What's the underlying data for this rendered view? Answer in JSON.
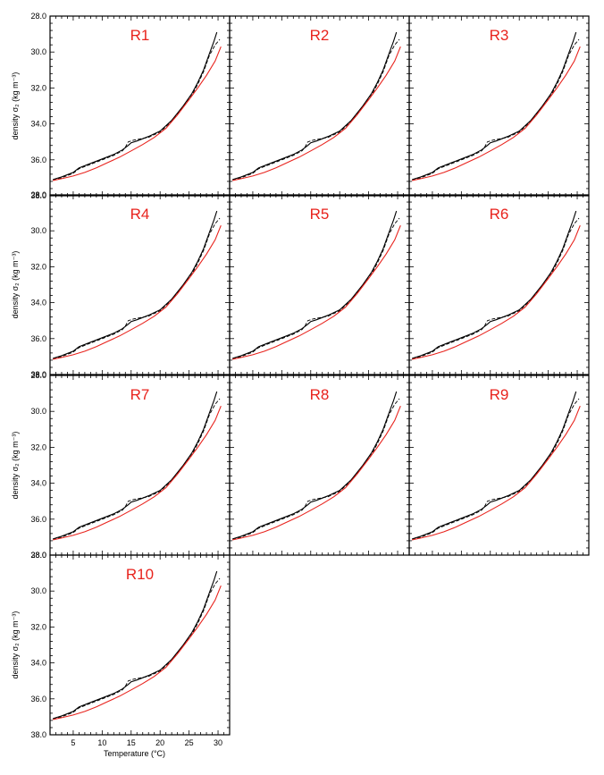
{
  "chart_data": {
    "type": "line",
    "layout": "small-multiples",
    "xlabel": "Temperature (°C)",
    "ylabel": "density σ₂ (kg m⁻³)",
    "xlim": [
      1,
      32
    ],
    "ylim": [
      28.0,
      38.0
    ],
    "y_inverted": true,
    "xticks": [
      "5",
      "10",
      "15",
      "20",
      "25",
      "30"
    ],
    "yticks": [
      "28.0",
      "30.0",
      "32.0",
      "34.0",
      "36.0",
      "38.0"
    ],
    "grid": false,
    "legend": "none",
    "colors": {
      "observed": "#000000",
      "model": "#e8231d",
      "title": "#e8231d"
    },
    "series": [
      {
        "style": "black-solid",
        "x": [
          1.5,
          3,
          5,
          6,
          8,
          10,
          12,
          13.5,
          14.5,
          15,
          16,
          18,
          20,
          22,
          24,
          25.5,
          26.5,
          27.5,
          28.5,
          29.3,
          29.8
        ],
        "y": [
          37.1,
          36.95,
          36.7,
          36.45,
          36.2,
          35.95,
          35.7,
          35.45,
          35.2,
          35.05,
          34.95,
          34.7,
          34.4,
          33.8,
          33.0,
          32.3,
          31.7,
          31.0,
          30.1,
          29.4,
          28.9
        ]
      },
      {
        "style": "black-dashed",
        "x": [
          1.5,
          3,
          5,
          6,
          8,
          10,
          12,
          13.5,
          14,
          14.5,
          15.5,
          18,
          20,
          22,
          24,
          25.5,
          26.5,
          27.5,
          28.5,
          29.5,
          30.3
        ],
        "y": [
          37.15,
          37.0,
          36.75,
          36.5,
          36.25,
          36.0,
          35.75,
          35.5,
          35.3,
          35.0,
          34.9,
          34.75,
          34.45,
          33.85,
          33.05,
          32.4,
          31.8,
          31.1,
          30.2,
          29.6,
          29.3
        ]
      },
      {
        "style": "red-solid",
        "x": [
          1.5,
          3,
          5,
          7,
          9,
          11,
          13,
          15,
          17,
          19,
          21,
          23,
          25,
          26.5,
          28,
          29.5,
          30.5
        ],
        "y": [
          37.15,
          37.05,
          36.9,
          36.7,
          36.45,
          36.15,
          35.85,
          35.5,
          35.15,
          34.75,
          34.25,
          33.5,
          32.65,
          32.0,
          31.3,
          30.5,
          29.7
        ]
      }
    ],
    "panels": [
      {
        "title": "R1"
      },
      {
        "title": "R2"
      },
      {
        "title": "R3"
      },
      {
        "title": "R4"
      },
      {
        "title": "R5"
      },
      {
        "title": "R6"
      },
      {
        "title": "R7"
      },
      {
        "title": "R8"
      },
      {
        "title": "R9"
      },
      {
        "title": "R10"
      }
    ]
  }
}
